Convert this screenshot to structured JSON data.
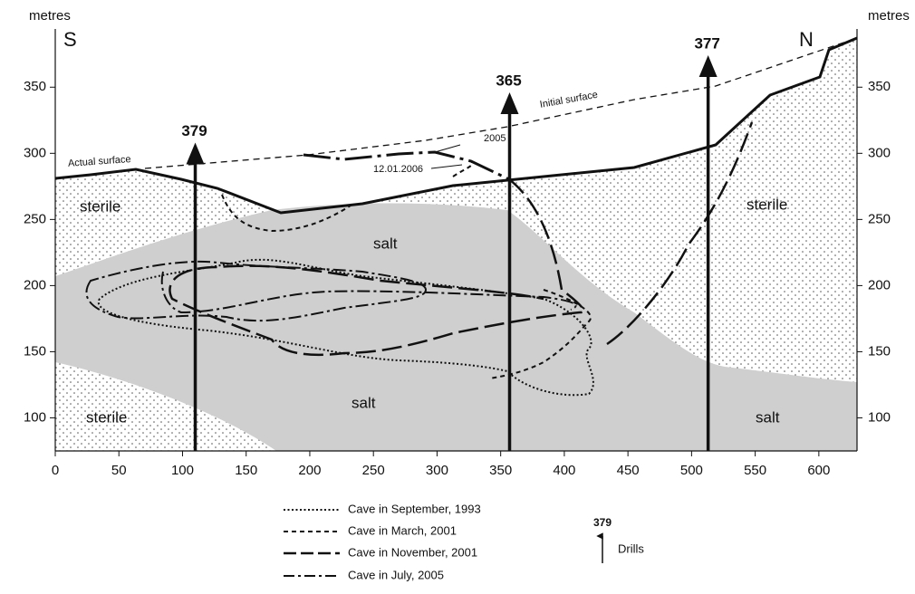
{
  "chart_data": {
    "type": "cross-section",
    "y_label": "metres",
    "y2_label": "metres",
    "left_end": "S",
    "right_end": "N",
    "xlim": [
      0,
      630
    ],
    "ylim": [
      75,
      394
    ],
    "y2lim": [
      75,
      394
    ],
    "xticks": [
      0,
      50,
      100,
      150,
      200,
      250,
      300,
      350,
      400,
      450,
      500,
      550,
      600
    ],
    "yticks": [
      100,
      150,
      200,
      250,
      300,
      350
    ],
    "y2ticks": [
      100,
      150,
      200,
      250,
      300,
      350
    ],
    "annotations": {
      "actual_surface": "Actual surface",
      "initial_surface": "Initial surface",
      "year_2005": "2005",
      "date_2006": "12.01.2006",
      "sterile_left": "sterile",
      "sterile_bottom": "sterile",
      "sterile_right": "sterile",
      "salt_top": "salt",
      "salt_bottom": "salt",
      "salt_right": "salt"
    },
    "drills": [
      {
        "label": "379",
        "x": 110,
        "top": 304
      },
      {
        "label": "365",
        "x": 357,
        "top": 342
      },
      {
        "label": "377",
        "x": 513,
        "top": 370
      }
    ],
    "legend": [
      "Cave in September, 1993",
      "Cave in March, 2001",
      "Cave in November, 2001",
      "Cave in July, 2005"
    ],
    "drill_legend": {
      "label": "379",
      "text": "Drills"
    }
  }
}
